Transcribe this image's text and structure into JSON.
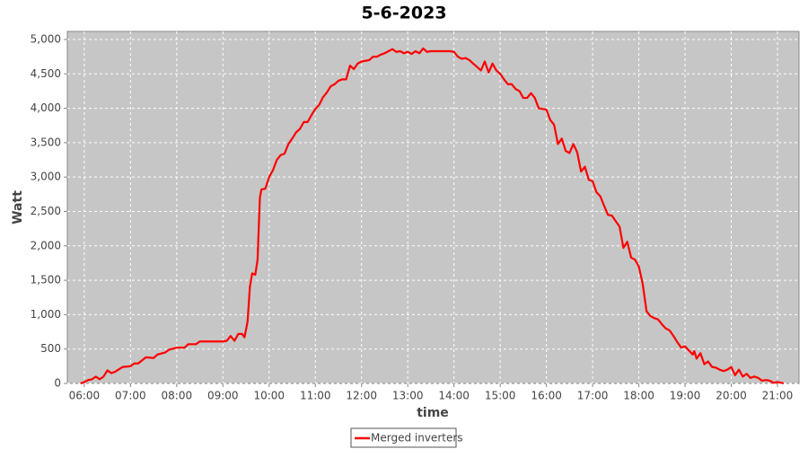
{
  "chart_data": {
    "type": "line",
    "title": "5-6-2023",
    "xlabel": "time",
    "ylabel": "Watt",
    "x": [
      "05:55",
      "06:00",
      "06:05",
      "06:10",
      "06:15",
      "06:20",
      "06:25",
      "06:30",
      "06:35",
      "06:40",
      "06:50",
      "07:00",
      "07:05",
      "07:10",
      "07:20",
      "07:30",
      "07:35",
      "07:45",
      "07:50",
      "08:00",
      "08:10",
      "08:15",
      "08:25",
      "08:30",
      "09:00",
      "09:05",
      "09:10",
      "09:15",
      "09:20",
      "09:25",
      "09:28",
      "09:32",
      "09:35",
      "09:38",
      "09:42",
      "09:45",
      "09:48",
      "09:50",
      "09:55",
      "10:00",
      "10:05",
      "10:10",
      "10:15",
      "10:20",
      "10:25",
      "10:30",
      "10:35",
      "10:40",
      "10:45",
      "10:50",
      "10:55",
      "11:00",
      "11:05",
      "11:10",
      "11:15",
      "11:20",
      "11:25",
      "11:30",
      "11:35",
      "11:40",
      "11:45",
      "11:50",
      "11:55",
      "12:00",
      "12:10",
      "12:15",
      "12:20",
      "12:25",
      "12:30",
      "12:35",
      "12:40",
      "12:45",
      "12:50",
      "12:55",
      "13:00",
      "13:05",
      "13:10",
      "13:15",
      "13:20",
      "13:25",
      "13:30",
      "13:50",
      "13:55",
      "14:00",
      "14:05",
      "14:10",
      "14:15",
      "14:20",
      "14:25",
      "14:30",
      "14:35",
      "14:40",
      "14:45",
      "14:50",
      "14:55",
      "15:00",
      "15:05",
      "15:10",
      "15:15",
      "15:20",
      "15:25",
      "15:30",
      "15:35",
      "15:40",
      "15:45",
      "15:50",
      "16:00",
      "16:05",
      "16:10",
      "16:15",
      "16:20",
      "16:25",
      "16:30",
      "16:35",
      "16:40",
      "16:45",
      "16:50",
      "16:55",
      "17:00",
      "17:05",
      "17:10",
      "17:15",
      "17:20",
      "17:25",
      "17:30",
      "17:35",
      "17:40",
      "17:45",
      "17:50",
      "17:55",
      "18:00",
      "18:05",
      "18:10",
      "18:15",
      "18:20",
      "18:25",
      "18:30",
      "18:35",
      "18:40",
      "18:45",
      "18:50",
      "18:55",
      "19:00",
      "19:05",
      "19:10",
      "19:12",
      "19:15",
      "19:20",
      "19:25",
      "19:30",
      "19:35",
      "19:40",
      "19:45",
      "19:50",
      "19:55",
      "20:00",
      "20:05",
      "20:10",
      "20:15",
      "20:20",
      "20:25",
      "20:30",
      "20:35",
      "20:40",
      "20:45",
      "20:50",
      "20:55",
      "21:00",
      "21:05",
      "21:08"
    ],
    "series": [
      {
        "name": "Merged inverters",
        "color": "#ff0000",
        "values": [
          0,
          20,
          50,
          60,
          100,
          60,
          100,
          190,
          150,
          170,
          240,
          250,
          290,
          290,
          380,
          370,
          420,
          450,
          490,
          520,
          520,
          570,
          570,
          610,
          610,
          620,
          690,
          620,
          720,
          720,
          670,
          900,
          1400,
          1600,
          1580,
          1800,
          2700,
          2820,
          2830,
          3000,
          3100,
          3250,
          3320,
          3340,
          3480,
          3560,
          3650,
          3700,
          3800,
          3800,
          3900,
          3990,
          4050,
          4160,
          4230,
          4320,
          4350,
          4400,
          4420,
          4420,
          4620,
          4570,
          4650,
          4680,
          4700,
          4750,
          4750,
          4780,
          4800,
          4830,
          4860,
          4820,
          4830,
          4800,
          4820,
          4790,
          4830,
          4800,
          4870,
          4820,
          4830,
          4830,
          4830,
          4820,
          4750,
          4720,
          4730,
          4700,
          4650,
          4600,
          4550,
          4680,
          4520,
          4650,
          4550,
          4500,
          4420,
          4350,
          4350,
          4280,
          4250,
          4150,
          4150,
          4220,
          4150,
          4000,
          3980,
          3830,
          3760,
          3480,
          3560,
          3380,
          3350,
          3480,
          3360,
          3080,
          3150,
          2960,
          2940,
          2780,
          2720,
          2580,
          2450,
          2440,
          2360,
          2280,
          1970,
          2060,
          1830,
          1800,
          1700,
          1450,
          1050,
          980,
          950,
          930,
          860,
          800,
          770,
          690,
          600,
          520,
          540,
          480,
          420,
          470,
          360,
          440,
          280,
          320,
          240,
          230,
          200,
          180,
          200,
          240,
          120,
          200,
          100,
          140,
          80,
          100,
          80,
          40,
          50,
          40,
          10,
          20,
          10,
          0
        ]
      }
    ],
    "xlim": [
      "05:38",
      "21:28"
    ],
    "xticks": [
      "06:00",
      "07:00",
      "08:00",
      "09:00",
      "10:00",
      "11:00",
      "12:00",
      "13:00",
      "14:00",
      "15:00",
      "16:00",
      "17:00",
      "18:00",
      "19:00",
      "20:00",
      "21:00"
    ],
    "ylim": [
      0,
      5117
    ],
    "yticks": [
      0,
      500,
      {
        "value": 1000,
        "label": "1,000"
      },
      {
        "value": 1500,
        "label": "1,500"
      },
      {
        "value": 2000,
        "label": "2,000"
      },
      {
        "value": 2500,
        "label": "2,500"
      },
      {
        "value": 3000,
        "label": "3,000"
      },
      {
        "value": 3500,
        "label": "3,500"
      },
      {
        "value": 4000,
        "label": "4,000"
      },
      {
        "value": 4500,
        "label": "4,500"
      },
      {
        "value": 5000,
        "label": "5,000"
      }
    ],
    "grid": true
  }
}
